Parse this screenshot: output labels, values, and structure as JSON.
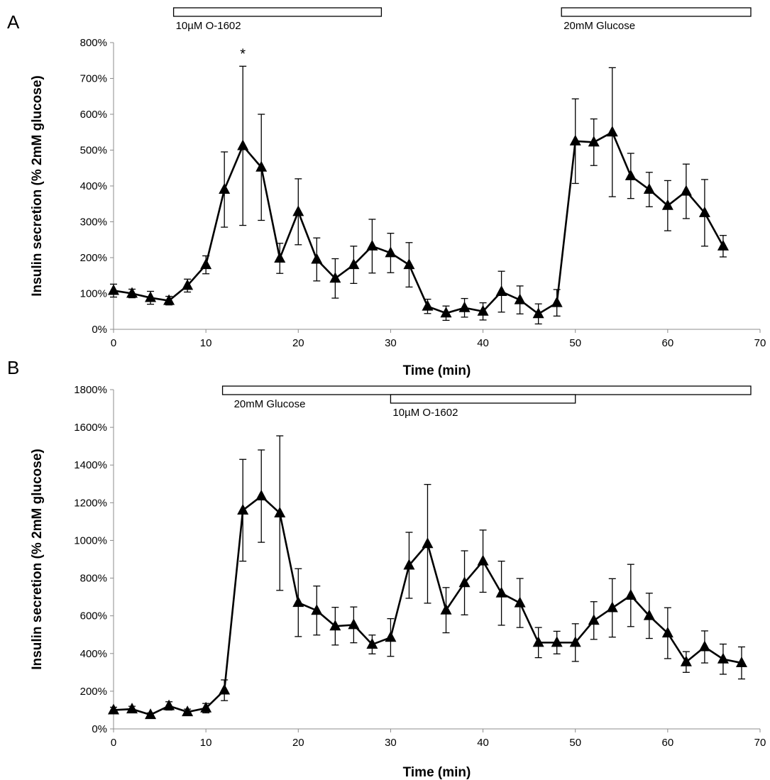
{
  "chart_data": [
    {
      "panel": "A",
      "type": "line",
      "xlabel": "Time (min)",
      "ylabel": "Insulin secretion (% 2mM glucose)",
      "xlim": [
        0,
        70
      ],
      "ylim": [
        0,
        800
      ],
      "xticks": [
        0,
        10,
        20,
        30,
        40,
        50,
        60,
        70
      ],
      "yticks": [
        0,
        100,
        200,
        300,
        400,
        500,
        600,
        700,
        800
      ],
      "y_unit": "%",
      "grid": false,
      "marker": "triangle",
      "treatments": [
        {
          "label": "10µM O-1602",
          "start": 6.5,
          "end": 29,
          "row": 0
        },
        {
          "label": "20mM Glucose",
          "start": 48.5,
          "end": 69,
          "row": 0
        }
      ],
      "annotations": [
        {
          "text": "*",
          "x": 14,
          "y": 755
        }
      ],
      "series": [
        {
          "x": [
            0,
            2,
            4,
            6,
            8,
            10,
            12,
            14,
            16,
            18,
            20,
            22,
            24,
            26,
            28,
            30,
            32,
            34,
            36,
            38,
            40,
            42,
            44,
            46,
            48,
            50,
            52,
            54,
            56,
            58,
            60,
            62,
            64,
            66
          ],
          "y": [
            108,
            100,
            88,
            80,
            122,
            180,
            390,
            512,
            452,
            198,
            328,
            195,
            142,
            180,
            232,
            213,
            180,
            64,
            45,
            60,
            50,
            105,
            82,
            43,
            74,
            525,
            522,
            550,
            428,
            390,
            345,
            385,
            325,
            232
          ],
          "err": [
            18,
            12,
            18,
            12,
            18,
            25,
            105,
            222,
            148,
            42,
            92,
            60,
            55,
            52,
            75,
            55,
            62,
            20,
            20,
            26,
            24,
            57,
            39,
            28,
            37,
            118,
            65,
            180,
            63,
            48,
            70,
            76,
            93,
            30
          ]
        }
      ]
    },
    {
      "panel": "B",
      "type": "line",
      "xlabel": "Time (min)",
      "ylabel": "Insulin secretion (% 2mM glucose)",
      "xlim": [
        0,
        70
      ],
      "ylim": [
        0,
        1800
      ],
      "xticks": [
        0,
        10,
        20,
        30,
        40,
        50,
        60,
        70
      ],
      "yticks": [
        0,
        200,
        400,
        600,
        800,
        1000,
        1200,
        1400,
        1600,
        1800
      ],
      "y_unit": "%",
      "grid": false,
      "marker": "triangle",
      "treatments": [
        {
          "label": "20mM Glucose",
          "start": 11.8,
          "end": 69,
          "row": 0
        },
        {
          "label": "10µM O-1602",
          "start": 30,
          "end": 50,
          "row": 1
        }
      ],
      "annotations": [],
      "series": [
        {
          "x": [
            0,
            2,
            4,
            6,
            8,
            10,
            12,
            14,
            16,
            18,
            20,
            22,
            24,
            26,
            28,
            30,
            32,
            34,
            36,
            38,
            40,
            42,
            44,
            46,
            48,
            50,
            52,
            54,
            56,
            58,
            60,
            62,
            64,
            66,
            68
          ],
          "y": [
            100,
            105,
            75,
            122,
            90,
            110,
            205,
            1160,
            1235,
            1145,
            670,
            628,
            545,
            552,
            448,
            485,
            868,
            982,
            630,
            775,
            890,
            720,
            668,
            458,
            458,
            458,
            575,
            642,
            708,
            600,
            508,
            355,
            435,
            370,
            350
          ],
          "err": [
            15,
            15,
            10,
            22,
            15,
            25,
            55,
            270,
            245,
            410,
            180,
            130,
            100,
            95,
            50,
            100,
            175,
            315,
            120,
            170,
            165,
            170,
            130,
            80,
            60,
            100,
            100,
            155,
            165,
            120,
            135,
            55,
            85,
            80,
            85
          ]
        }
      ]
    }
  ]
}
